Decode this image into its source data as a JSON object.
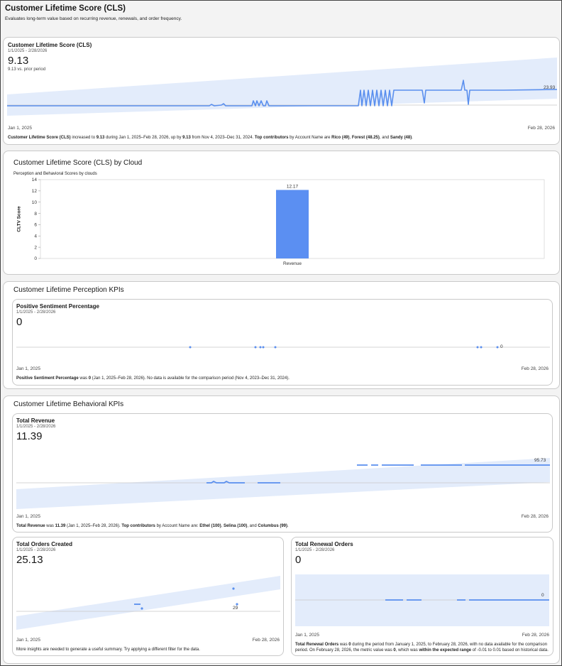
{
  "page": {
    "title": "Customer Lifetime Score (CLS)",
    "subtitle": "Evaluates long-term value based on recurring revenue, renewals, and order frequency."
  },
  "colors": {
    "series": "#5a8fee",
    "band": "#e3ecfb",
    "bar": "#5b8ff2"
  },
  "cls_card": {
    "title": "Customer Lifetime Score (CLS)",
    "date_range": "1/1/2025 - 2/28/2026",
    "value": "9.13",
    "comparison": "9.13 vs. prior period",
    "last_value_label": "23.93",
    "x_start": "Jan 1, 2025",
    "x_end": "Feb 28, 2026",
    "summary": {
      "s1": "Customer Lifetime Score (CLS)",
      "s2": " increased to ",
      "s3": "9.13",
      "s4": " during Jan 1, 2025–Feb 28, 2026, up by ",
      "s5": "9.13",
      "s6": " from Nov 4, 2023–Dec 31, 2024. ",
      "s7": "Top contributors",
      "s8": " by Account Name are ",
      "s9": "Rico (49)",
      "s10": ", ",
      "s11": "Forest (48.25)",
      "s12": ", and ",
      "s13": "Sandy (48)",
      "s14": "."
    }
  },
  "cloud_card": {
    "title": "Customer Lifetime Score (CLS) by Cloud",
    "subtitle": "Perception and Behavioral Scores by clouds"
  },
  "chart_data": {
    "type": "bar",
    "categories": [
      "Revenue"
    ],
    "values": [
      12.17
    ],
    "title": "Customer Lifetime Score (CLS) by Cloud",
    "subtitle": "Perception and Behavioral Scores by clouds",
    "xlabel": "",
    "ylabel": "CLTV Score",
    "ylim": [
      0,
      14
    ],
    "yticks": [
      0,
      2,
      4,
      6,
      8,
      10,
      12,
      14
    ],
    "data_labels": [
      "12.17"
    ],
    "grid": false
  },
  "perception": {
    "title": "Customer Lifetime Perception KPIs",
    "positive_sentiment": {
      "title": "Positive Sentiment Percentage",
      "date_range": "1/1/2025 - 2/28/2026",
      "value": "0",
      "last_value_label": "0",
      "x_start": "Jan 1, 2025",
      "x_end": "Feb 28, 2026",
      "summary": {
        "s1": "Positive Sentiment Percentage",
        "s2": " was ",
        "s3": "0",
        "s4": " (Jan 1, 2025–Feb 28, 2026). No data is available for the comparison period (Nov 4, 2023–Dec 31, 2024)."
      }
    }
  },
  "behavioral": {
    "title": "Customer Lifetime  Behavioral KPIs",
    "total_revenue": {
      "title": "Total Revenue",
      "date_range": "1/1/2025 - 2/28/2026",
      "value": "11.39",
      "last_value_label": "95.73",
      "x_start": "Jan 1, 2025",
      "x_end": "Feb 28, 2026",
      "summary": {
        "s1": "Total Revenue",
        "s2": " was ",
        "s3": "11.39",
        "s4": " (Jan 1, 2025–Feb 28, 2026). ",
        "s5": "Top contributors",
        "s6": " by Account Name are: ",
        "s7": "Ethel (100)",
        "s8": ", ",
        "s9": "Selina (100)",
        "s10": ", and ",
        "s11": "Columbus (99)",
        "s12": "."
      }
    },
    "total_orders": {
      "title": "Total Orders Created",
      "date_range": "1/1/2025 - 2/28/2026",
      "value": "25.13",
      "last_value_label": "29",
      "x_start": "Jan 1, 2025",
      "x_end": "Feb 28, 2026",
      "summary": "More insights are needed to generate a useful summary. Try applying a different filter for the data."
    },
    "total_renewal": {
      "title": "Total Renewal Orders",
      "date_range": "1/1/2025 - 2/28/2026",
      "value": "0",
      "last_value_label": "0",
      "x_start": "Jan 1, 2025",
      "x_end": "Feb 28, 2026",
      "summary": {
        "s1": "Total Renewal Orders",
        "s2": " was ",
        "s3": "0",
        "s4": " during the period from January 1, 2025, to February 28, 2026, with no data available for the comparison period. On February 28, 2026, the metric value was ",
        "s5": "0",
        "s6": ", which was ",
        "s7": "within the expected range",
        "s8": " of -0.01 to 0.01 based on historical data."
      }
    }
  }
}
